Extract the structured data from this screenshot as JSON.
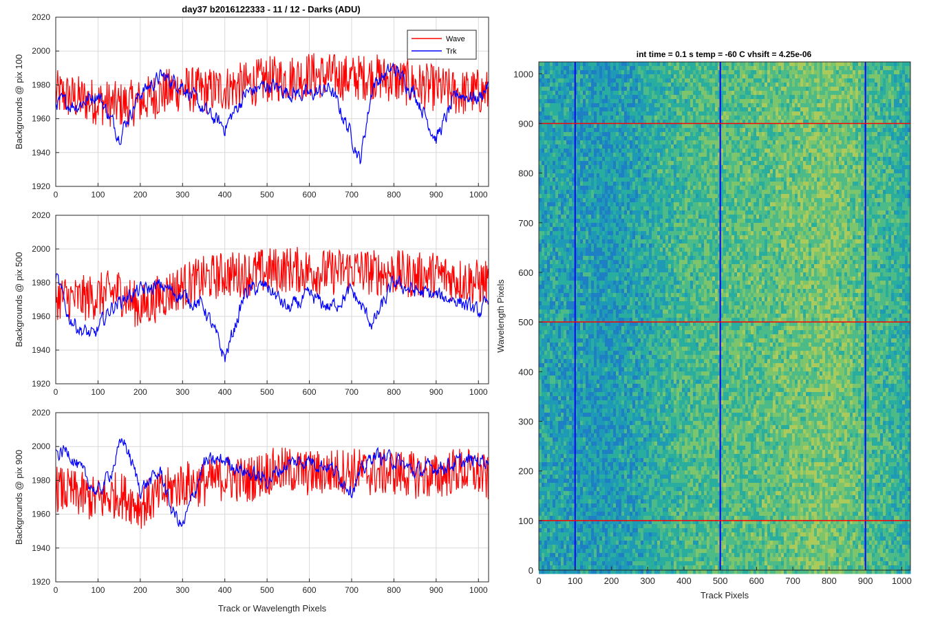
{
  "figure": {
    "title": "day37 b2016122333 - 11 / 12 - Darks (ADU)",
    "heatmap_title": "int time = 0.1 s   temp = -60 C   vhsift = 4.25e-06"
  },
  "colors": {
    "wave": "#ff0000",
    "trk": "#0000ff",
    "grid": "#d9d9d9",
    "axis": "#262626",
    "heat_low": "#1f8fb8",
    "heat_mid": "#2fb59a",
    "heat_high": "#a8c85a"
  },
  "chart_data": [
    {
      "type": "line",
      "ylabel": "Backgrounds @ pix 100",
      "xlabel": "",
      "xlim": [
        0,
        1024
      ],
      "ylim": [
        1920,
        2020
      ],
      "xticks": [
        0,
        100,
        200,
        300,
        400,
        500,
        600,
        700,
        800,
        900,
        1000
      ],
      "yticks": [
        1920,
        1940,
        1960,
        1980,
        2000,
        2020
      ],
      "grid": true,
      "legend": "top-right",
      "series": [
        {
          "name": "Wave",
          "x": [
            0,
            50,
            100,
            150,
            200,
            250,
            300,
            350,
            400,
            450,
            500,
            550,
            600,
            650,
            700,
            750,
            800,
            850,
            900,
            950,
            1000,
            1024
          ],
          "values": [
            1975,
            1972,
            1970,
            1968,
            1970,
            1975,
            1978,
            1976,
            1978,
            1980,
            1983,
            1984,
            1986,
            1985,
            1984,
            1985,
            1983,
            1980,
            1978,
            1975,
            1976,
            1975
          ]
        },
        {
          "name": "Trk",
          "x": [
            0,
            50,
            100,
            150,
            200,
            250,
            300,
            350,
            400,
            450,
            500,
            550,
            600,
            650,
            700,
            720,
            750,
            800,
            850,
            900,
            950,
            1000,
            1024
          ],
          "values": [
            1970,
            1968,
            1975,
            1950,
            1975,
            1985,
            1980,
            1965,
            1955,
            1975,
            1980,
            1976,
            1974,
            1978,
            1950,
            1935,
            1980,
            1990,
            1975,
            1948,
            1975,
            1972,
            1980
          ]
        }
      ]
    },
    {
      "type": "line",
      "ylabel": "Backgrounds @ pix 500",
      "xlabel": "",
      "xlim": [
        0,
        1024
      ],
      "ylim": [
        1920,
        2020
      ],
      "xticks": [
        0,
        100,
        200,
        300,
        400,
        500,
        600,
        700,
        800,
        900,
        1000
      ],
      "yticks": [
        1920,
        1940,
        1960,
        1980,
        2000,
        2020
      ],
      "grid": true,
      "series": [
        {
          "name": "Wave",
          "x": [
            0,
            50,
            100,
            150,
            200,
            250,
            300,
            350,
            400,
            450,
            500,
            550,
            600,
            650,
            700,
            750,
            800,
            850,
            900,
            950,
            1000,
            1024
          ],
          "values": [
            1972,
            1970,
            1972,
            1975,
            1965,
            1972,
            1978,
            1982,
            1985,
            1985,
            1987,
            1988,
            1987,
            1986,
            1988,
            1986,
            1986,
            1984,
            1985,
            1982,
            1980,
            1980
          ]
        },
        {
          "name": "Trk",
          "x": [
            0,
            30,
            60,
            90,
            130,
            170,
            200,
            250,
            300,
            350,
            380,
            400,
            450,
            500,
            550,
            600,
            650,
            700,
            750,
            800,
            850,
            900,
            950,
            1000,
            1024
          ],
          "values": [
            1985,
            1960,
            1952,
            1948,
            1965,
            1972,
            1975,
            1978,
            1972,
            1966,
            1948,
            1935,
            1975,
            1978,
            1964,
            1972,
            1965,
            1975,
            1955,
            1980,
            1975,
            1972,
            1970,
            1962,
            1968
          ]
        }
      ]
    },
    {
      "type": "line",
      "ylabel": "Backgrounds @ pix 900",
      "xlabel": "Track or Wavelength Pixels",
      "xlim": [
        0,
        1024
      ],
      "ylim": [
        1920,
        2020
      ],
      "xticks": [
        0,
        100,
        200,
        300,
        400,
        500,
        600,
        700,
        800,
        900,
        1000
      ],
      "yticks": [
        1920,
        1940,
        1960,
        1980,
        2000,
        2020
      ],
      "grid": true,
      "series": [
        {
          "name": "Wave",
          "x": [
            0,
            50,
            100,
            150,
            200,
            250,
            300,
            350,
            400,
            450,
            500,
            550,
            600,
            650,
            700,
            750,
            800,
            850,
            900,
            950,
            1000,
            1024
          ],
          "values": [
            1975,
            1972,
            1968,
            1972,
            1965,
            1972,
            1978,
            1978,
            1982,
            1980,
            1985,
            1986,
            1984,
            1985,
            1986,
            1984,
            1985,
            1983,
            1982,
            1986,
            1984,
            1980
          ]
        },
        {
          "name": "Trk",
          "x": [
            0,
            30,
            60,
            100,
            130,
            160,
            200,
            250,
            270,
            300,
            350,
            400,
            450,
            500,
            550,
            600,
            650,
            700,
            750,
            800,
            850,
            900,
            950,
            1000,
            1024
          ],
          "values": [
            1995,
            1998,
            1985,
            1972,
            1985,
            2005,
            1975,
            1985,
            1965,
            1952,
            1990,
            1992,
            1985,
            1980,
            1990,
            1992,
            1988,
            1975,
            1995,
            1992,
            1985,
            1988,
            1990,
            1992,
            1993
          ]
        }
      ]
    },
    {
      "type": "heatmap",
      "title": "int time = 0.1 s   temp = -60 C   vhsift = 4.25e-06",
      "xlabel": "Track Pixels",
      "ylabel": "Wavelength Pixels",
      "xlim": [
        0,
        1024
      ],
      "ylim": [
        0,
        1024
      ],
      "xticks": [
        0,
        100,
        200,
        300,
        400,
        500,
        600,
        700,
        800,
        900,
        1000
      ],
      "yticks": [
        0,
        100,
        200,
        300,
        400,
        500,
        600,
        700,
        800,
        900,
        1000
      ],
      "vlines": [
        100,
        500,
        900
      ],
      "hlines": [
        100,
        500,
        900
      ],
      "profile_x": [
        0,
        100,
        200,
        300,
        400,
        500,
        600,
        700,
        800,
        900,
        1000,
        1024
      ],
      "profile_level": [
        0.35,
        0.3,
        0.25,
        0.4,
        0.55,
        0.6,
        0.62,
        0.7,
        0.75,
        0.6,
        0.45,
        0.4
      ]
    }
  ]
}
